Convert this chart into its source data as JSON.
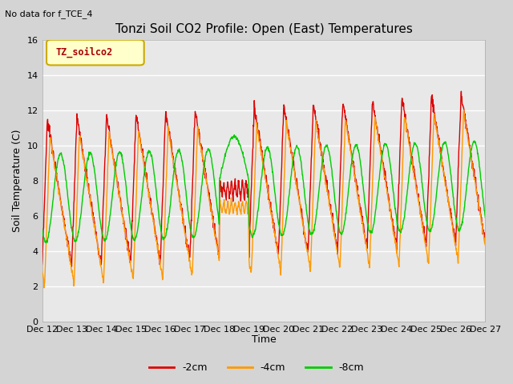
{
  "title": "Tonzi Soil CO2 Profile: Open (East) Temperatures",
  "subtitle": "No data for f_TCE_4",
  "ylabel": "Soil Temperature (C)",
  "xlabel": "Time",
  "legend_label": "TZ_soilco2",
  "ylim": [
    0,
    16
  ],
  "xlim": [
    0,
    360
  ],
  "colors": {
    "-2cm": "#dd0000",
    "-4cm": "#ff9900",
    "-8cm": "#00cc00"
  },
  "background_color": "#e0e0e0",
  "tick_labels": [
    "Dec 12",
    "Dec 13",
    "Dec 14",
    "Dec 15",
    "Dec 16",
    "Dec 17",
    "Dec 18",
    "Dec 19",
    "Dec 20",
    "Dec 21",
    "Dec 22",
    "Dec 23",
    "Dec 24",
    "Dec 25",
    "Dec 26",
    "Dec 27"
  ],
  "tick_positions": [
    0,
    24,
    48,
    72,
    96,
    120,
    144,
    168,
    192,
    216,
    240,
    264,
    288,
    312,
    336,
    360
  ],
  "figsize": [
    6.4,
    4.8
  ],
  "dpi": 100
}
